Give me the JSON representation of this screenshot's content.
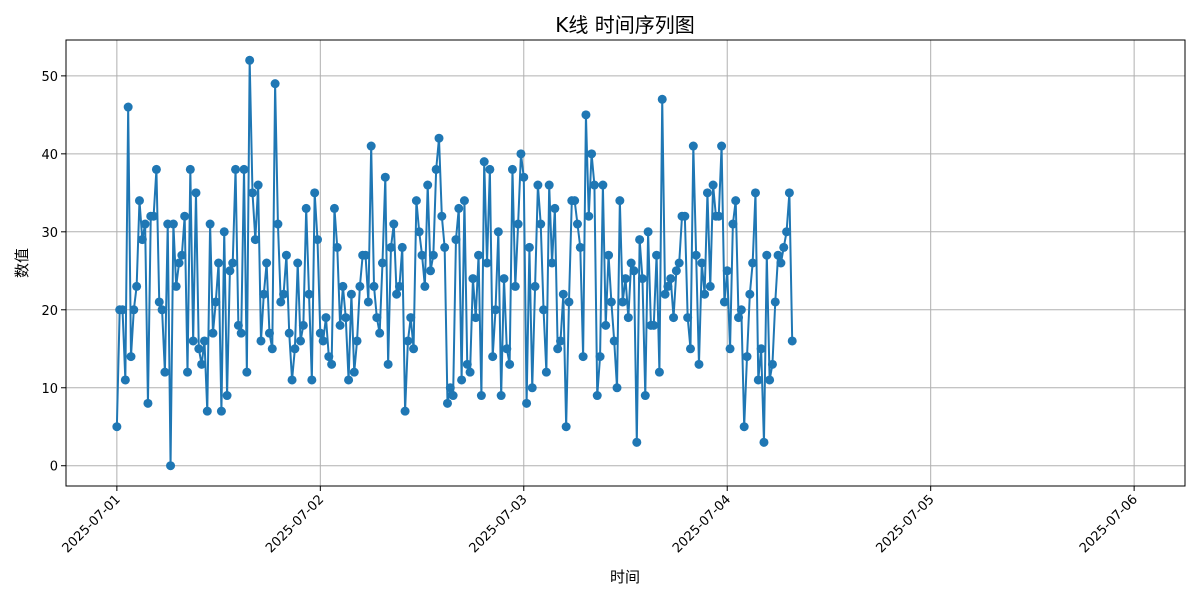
{
  "chart_data": {
    "type": "line",
    "title": "K线 时间序列图",
    "xlabel": "时间",
    "ylabel": "数值",
    "x_start": "2025-07-01 00:00",
    "x_step_minutes": 20,
    "xlim": [
      "2025-06-30 18:00",
      "2025-07-06 06:00"
    ],
    "ylim": [
      -2.6,
      54.6
    ],
    "x_ticks": [
      "2025-07-01",
      "2025-07-02",
      "2025-07-03",
      "2025-07-04",
      "2025-07-05",
      "2025-07-06"
    ],
    "y_ticks": [
      0,
      10,
      20,
      30,
      40,
      50
    ],
    "grid": true,
    "marker": "circle",
    "series": [
      {
        "color": "#1f77b4",
        "values": [
          5,
          20,
          20,
          11,
          46,
          14,
          20,
          23,
          34,
          29,
          31,
          8,
          32,
          32,
          38,
          21,
          20,
          12,
          31,
          0,
          31,
          23,
          26,
          27,
          32,
          12,
          38,
          16,
          35,
          15,
          13,
          16,
          7,
          31,
          17,
          21,
          26,
          7,
          30,
          9,
          25,
          26,
          38,
          18,
          17,
          38,
          12,
          52,
          35,
          29,
          36,
          16,
          22,
          26,
          17,
          15,
          49,
          31,
          21,
          22,
          27,
          17,
          11,
          15,
          26,
          16,
          18,
          33,
          22,
          11,
          35,
          29,
          17,
          16,
          19,
          14,
          13,
          33,
          28,
          18,
          23,
          19,
          11,
          22,
          12,
          16,
          23,
          27,
          27,
          21,
          41,
          23,
          19,
          17,
          26,
          37,
          13,
          28,
          31,
          22,
          23,
          28,
          7,
          16,
          19,
          15,
          34,
          30,
          27,
          23,
          36,
          25,
          27,
          38,
          42,
          32,
          28,
          8,
          10,
          9,
          29,
          33,
          11,
          34,
          13,
          12,
          24,
          19,
          27,
          9,
          39,
          26,
          38,
          14,
          20,
          30,
          9,
          24,
          15,
          13,
          38,
          23,
          31,
          40,
          37,
          8,
          28,
          10,
          23,
          36,
          31,
          20,
          12,
          36,
          26,
          33,
          15,
          16,
          22,
          5,
          21,
          34,
          34,
          31,
          28,
          14,
          45,
          32,
          40,
          36,
          9,
          14,
          36,
          18,
          27,
          21,
          16,
          10,
          34,
          21,
          24,
          19,
          26,
          25,
          3,
          29,
          24,
          9,
          30,
          18,
          18,
          27,
          12,
          47,
          22,
          23,
          24,
          19,
          25,
          26,
          32,
          32,
          19,
          15,
          41,
          27,
          13,
          26,
          22,
          35,
          23,
          36,
          32,
          32,
          41,
          21,
          25,
          15,
          31,
          34,
          19,
          20,
          5,
          14,
          22,
          26,
          35,
          11,
          15,
          3,
          27,
          11,
          13,
          21,
          27,
          26,
          28,
          30,
          35,
          16
        ]
      }
    ]
  }
}
